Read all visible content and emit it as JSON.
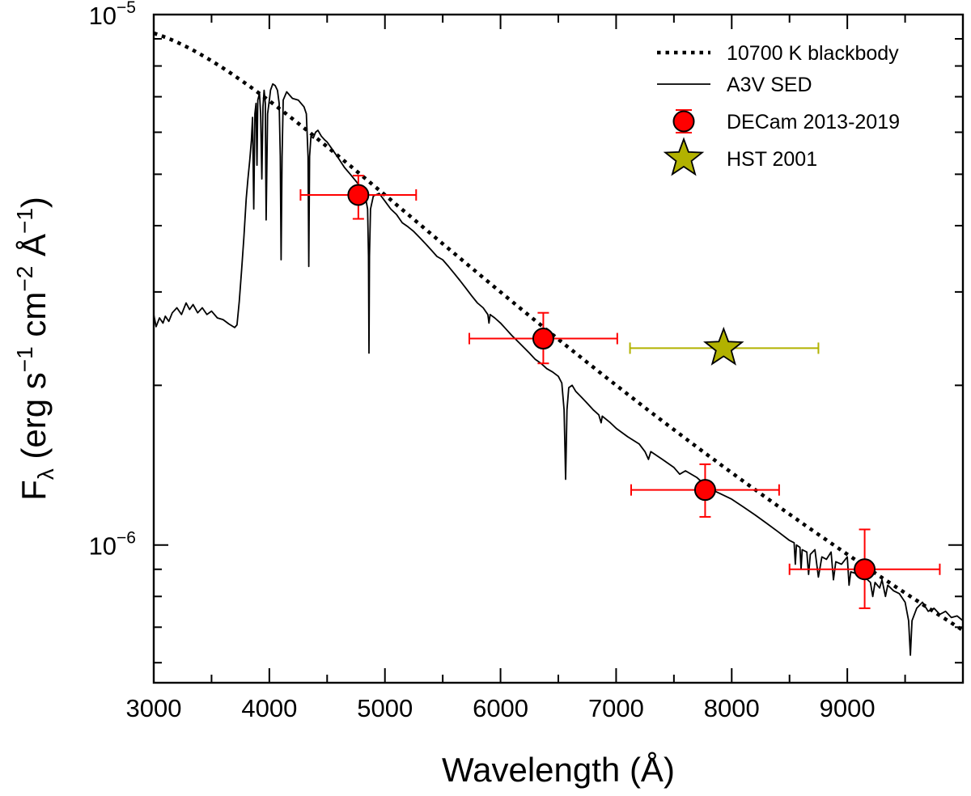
{
  "chart_data": {
    "type": "scatter",
    "xlabel": "Wavelength (Å)",
    "ylabel": {
      "main": "F",
      "sub": "λ",
      "units": [
        {
          "text": " (erg s"
        },
        {
          "text": "−1",
          "sup": true
        },
        {
          "text": " cm"
        },
        {
          "text": "−2",
          "sup": true
        },
        {
          "text": " Å"
        },
        {
          "text": "−1",
          "sup": true
        },
        {
          "text": ")"
        }
      ]
    },
    "xlim": [
      3000,
      10000
    ],
    "ylim": [
      5.5e-07,
      1e-05
    ],
    "yscale": "log",
    "x_ticks": [
      3000,
      4000,
      5000,
      6000,
      7000,
      8000,
      9000
    ],
    "x_tick_labels": [
      "3000",
      "4000",
      "5000",
      "6000",
      "7000",
      "8000",
      "9000"
    ],
    "y_major_ticks": [
      {
        "value": 1e-05,
        "base": "10",
        "exp": "−5"
      },
      {
        "value": 1e-06,
        "base": "10",
        "exp": "−6"
      }
    ],
    "legend_position": "top-right",
    "series": [
      {
        "name": "10700 K blackbody",
        "kind": "line",
        "style": "dotted",
        "color": "#000000",
        "temperature_K": 10700,
        "normalization": {
          "x": 5000,
          "y": 4.57e-06
        }
      },
      {
        "name": "A3V SED",
        "kind": "line",
        "style": "solid",
        "color": "#000000",
        "points": [
          [
            3000,
            2.72e-06
          ],
          [
            3020,
            2.58e-06
          ],
          [
            3050,
            2.68e-06
          ],
          [
            3080,
            2.62e-06
          ],
          [
            3100,
            2.7e-06
          ],
          [
            3130,
            2.64e-06
          ],
          [
            3160,
            2.74e-06
          ],
          [
            3200,
            2.8e-06
          ],
          [
            3240,
            2.72e-06
          ],
          [
            3280,
            2.86e-06
          ],
          [
            3310,
            2.78e-06
          ],
          [
            3340,
            2.84e-06
          ],
          [
            3380,
            2.74e-06
          ],
          [
            3420,
            2.8e-06
          ],
          [
            3460,
            2.72e-06
          ],
          [
            3500,
            2.76e-06
          ],
          [
            3550,
            2.68e-06
          ],
          [
            3600,
            2.66e-06
          ],
          [
            3650,
            2.61e-06
          ],
          [
            3700,
            2.57e-06
          ],
          [
            3720,
            2.6e-06
          ],
          [
            3740,
            2.88e-06
          ],
          [
            3760,
            3.3e-06
          ],
          [
            3780,
            3.8e-06
          ],
          [
            3800,
            4.5e-06
          ],
          [
            3815,
            4.9e-06
          ],
          [
            3830,
            5.3e-06
          ],
          [
            3845,
            5.8e-06
          ],
          [
            3855,
            6.4e-06
          ],
          [
            3865,
            4.3e-06
          ],
          [
            3875,
            6.5e-06
          ],
          [
            3885,
            6.8e-06
          ],
          [
            3893,
            5.2e-06
          ],
          [
            3900,
            6.9e-06
          ],
          [
            3915,
            7.1e-06
          ],
          [
            3925,
            6.5e-06
          ],
          [
            3935,
            4.9e-06
          ],
          [
            3945,
            6.7e-06
          ],
          [
            3955,
            7.2e-06
          ],
          [
            3965,
            6.8e-06
          ],
          [
            3972,
            4.1e-06
          ],
          [
            3985,
            6.5e-06
          ],
          [
            4000,
            6.9e-06
          ],
          [
            4010,
            7.2e-06
          ],
          [
            4030,
            7.4e-06
          ],
          [
            4050,
            7.35e-06
          ],
          [
            4070,
            7.2e-06
          ],
          [
            4085,
            6.8e-06
          ],
          [
            4095,
            5.4e-06
          ],
          [
            4102,
            3.45e-06
          ],
          [
            4110,
            5.4e-06
          ],
          [
            4120,
            6.9e-06
          ],
          [
            4150,
            7.15e-06
          ],
          [
            4200,
            6.95e-06
          ],
          [
            4250,
            6.9e-06
          ],
          [
            4300,
            6.7e-06
          ],
          [
            4320,
            6.5e-06
          ],
          [
            4335,
            5.4e-06
          ],
          [
            4341,
            3.35e-06
          ],
          [
            4348,
            5.4e-06
          ],
          [
            4360,
            5.9e-06
          ],
          [
            4380,
            5.85e-06
          ],
          [
            4400,
            6e-06
          ],
          [
            4420,
            6.05e-06
          ],
          [
            4450,
            5.9e-06
          ],
          [
            4480,
            5.8e-06
          ],
          [
            4500,
            5.75e-06
          ],
          [
            4550,
            5.55e-06
          ],
          [
            4600,
            5.35e-06
          ],
          [
            4650,
            5.15e-06
          ],
          [
            4700,
            5e-06
          ],
          [
            4750,
            4.85e-06
          ],
          [
            4800,
            4.7e-06
          ],
          [
            4830,
            4.55e-06
          ],
          [
            4850,
            4.3e-06
          ],
          [
            4858,
            3.5e-06
          ],
          [
            4862,
            2.3e-06
          ],
          [
            4866,
            3.5e-06
          ],
          [
            4875,
            4.3e-06
          ],
          [
            4900,
            4.55e-06
          ],
          [
            4950,
            4.6e-06
          ],
          [
            5000,
            4.45e-06
          ],
          [
            5050,
            4.3e-06
          ],
          [
            5100,
            4.2e-06
          ],
          [
            5150,
            4.05e-06
          ],
          [
            5200,
            3.98e-06
          ],
          [
            5250,
            3.9e-06
          ],
          [
            5300,
            3.8e-06
          ],
          [
            5350,
            3.7e-06
          ],
          [
            5400,
            3.6e-06
          ],
          [
            5450,
            3.5e-06
          ],
          [
            5500,
            3.45e-06
          ],
          [
            5550,
            3.35e-06
          ],
          [
            5600,
            3.25e-06
          ],
          [
            5650,
            3.15e-06
          ],
          [
            5700,
            3.05e-06
          ],
          [
            5750,
            2.95e-06
          ],
          [
            5800,
            2.86e-06
          ],
          [
            5850,
            2.8e-06
          ],
          [
            5890,
            2.72e-06
          ],
          [
            5900,
            2.62e-06
          ],
          [
            5910,
            2.72e-06
          ],
          [
            5950,
            2.68e-06
          ],
          [
            6000,
            2.62e-06
          ],
          [
            6050,
            2.55e-06
          ],
          [
            6100,
            2.48e-06
          ],
          [
            6150,
            2.42e-06
          ],
          [
            6200,
            2.36e-06
          ],
          [
            6250,
            2.3e-06
          ],
          [
            6300,
            2.24e-06
          ],
          [
            6350,
            2.2e-06
          ],
          [
            6400,
            2.15e-06
          ],
          [
            6450,
            2.12e-06
          ],
          [
            6500,
            2.08e-06
          ],
          [
            6530,
            2.02e-06
          ],
          [
            6550,
            1.8e-06
          ],
          [
            6558,
            1.5e-06
          ],
          [
            6563,
            1.33e-06
          ],
          [
            6568,
            1.5e-06
          ],
          [
            6575,
            1.8e-06
          ],
          [
            6590,
            1.98e-06
          ],
          [
            6620,
            2e-06
          ],
          [
            6650,
            1.95e-06
          ],
          [
            6700,
            1.9e-06
          ],
          [
            6750,
            1.85e-06
          ],
          [
            6800,
            1.8e-06
          ],
          [
            6850,
            1.76e-06
          ],
          [
            6870,
            1.7e-06
          ],
          [
            6880,
            1.75e-06
          ],
          [
            6950,
            1.7e-06
          ],
          [
            7000,
            1.66e-06
          ],
          [
            7100,
            1.6e-06
          ],
          [
            7200,
            1.55e-06
          ],
          [
            7250,
            1.5e-06
          ],
          [
            7280,
            1.45e-06
          ],
          [
            7300,
            1.5e-06
          ],
          [
            7400,
            1.45e-06
          ],
          [
            7500,
            1.4e-06
          ],
          [
            7550,
            1.36e-06
          ],
          [
            7600,
            1.38e-06
          ],
          [
            7700,
            1.34e-06
          ],
          [
            7800,
            1.28e-06
          ],
          [
            7900,
            1.25e-06
          ],
          [
            8000,
            1.22e-06
          ],
          [
            8100,
            1.18e-06
          ],
          [
            8200,
            1.14e-06
          ],
          [
            8300,
            1.1e-06
          ],
          [
            8400,
            1.06e-06
          ],
          [
            8500,
            1.02e-06
          ],
          [
            8540,
            1.01e-06
          ],
          [
            8550,
            9.2e-07
          ],
          [
            8560,
            1e-06
          ],
          [
            8590,
            9.9e-07
          ],
          [
            8600,
            9e-07
          ],
          [
            8610,
            9.8e-07
          ],
          [
            8650,
            9.7e-07
          ],
          [
            8665,
            8.8e-07
          ],
          [
            8680,
            9.6e-07
          ],
          [
            8720,
            9.8e-07
          ],
          [
            8750,
            8.7e-07
          ],
          [
            8780,
            9.5e-07
          ],
          [
            8820,
            9.4e-07
          ],
          [
            8860,
            9.7e-07
          ],
          [
            8880,
            8.6e-07
          ],
          [
            8900,
            9.3e-07
          ],
          [
            8950,
            9.2e-07
          ],
          [
            9000,
            9.5e-07
          ],
          [
            9015,
            8.4e-07
          ],
          [
            9030,
            8.9e-07
          ],
          [
            9100,
            8.8e-07
          ],
          [
            9150,
            8.7e-07
          ],
          [
            9200,
            8.5e-07
          ],
          [
            9220,
            8e-07
          ],
          [
            9240,
            8.5e-07
          ],
          [
            9280,
            8.3e-07
          ],
          [
            9300,
            8.6e-07
          ],
          [
            9330,
            8e-07
          ],
          [
            9350,
            8.4e-07
          ],
          [
            9400,
            8.2e-07
          ],
          [
            9450,
            8.1e-07
          ],
          [
            9500,
            7.8e-07
          ],
          [
            9530,
            7.2e-07
          ],
          [
            9546,
            6.2e-07
          ],
          [
            9560,
            7.2e-07
          ],
          [
            9600,
            7.6e-07
          ],
          [
            9650,
            7.8e-07
          ],
          [
            9700,
            7.5e-07
          ],
          [
            9750,
            7.6e-07
          ],
          [
            9800,
            7.4e-07
          ],
          [
            9850,
            7.5e-07
          ],
          [
            9900,
            7.3e-07
          ],
          [
            9950,
            7.35e-07
          ],
          [
            10000,
            7.2e-07
          ]
        ]
      },
      {
        "name": "DECam 2013-2019",
        "kind": "points",
        "marker": "circle",
        "color": "#ff0000",
        "points": [
          {
            "x": 4770,
            "y": 4.57e-06,
            "xerr": 500,
            "yerr_low": 4.12e-06,
            "yerr_high": 4.97e-06
          },
          {
            "x": 6370,
            "y": 2.45e-06,
            "xerr": 640,
            "yerr_low": 2.2e-06,
            "yerr_high": 2.74e-06
          },
          {
            "x": 7770,
            "y": 1.27e-06,
            "xerr": 640,
            "yerr_low": 1.13e-06,
            "yerr_high": 1.42e-06
          },
          {
            "x": 9150,
            "y": 9e-07,
            "xerr": 650,
            "yerr_low": 7.6e-07,
            "yerr_high": 1.07e-06
          }
        ]
      },
      {
        "name": "HST 2001",
        "kind": "points",
        "marker": "star",
        "color": "#b2b200",
        "points": [
          {
            "x": 7930,
            "y": 2.35e-06,
            "xerr_low": 7120,
            "xerr_high": 8750
          }
        ]
      }
    ]
  }
}
